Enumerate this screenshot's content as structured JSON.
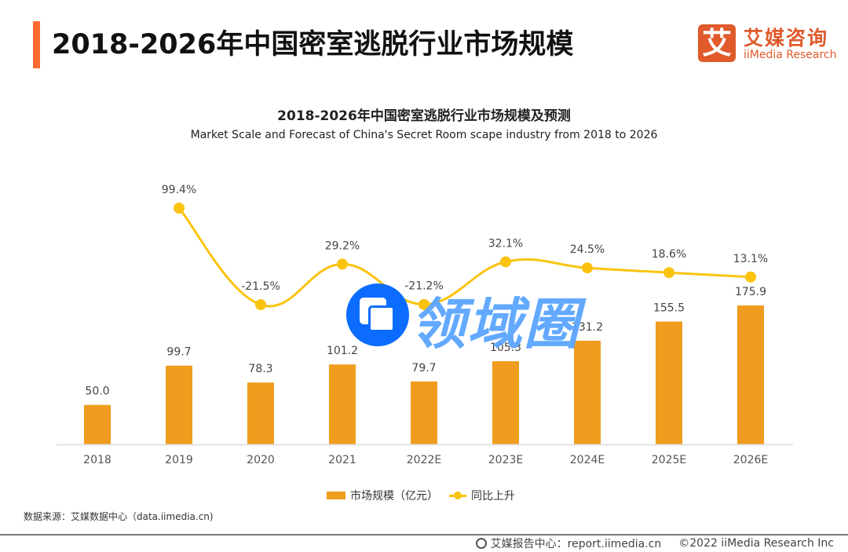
{
  "header": {
    "page_title": "2018-2026年中国密室逃脱行业市场规模",
    "logo_mark": "艾",
    "logo_cn": "艾媒咨询",
    "logo_en": "iiMedia Research",
    "accent_color": "#ff6a33",
    "brand_color": "#e05a2b"
  },
  "chart_data": {
    "type": "bar",
    "title": "2018-2026年中国密室逃脱行业市场规模及预测",
    "subtitle": "Market Scale and Forecast of China's Secret Room scape  industry from 2018 to 2026",
    "categories": [
      "2018",
      "2019",
      "2020",
      "2021",
      "2022E",
      "2023E",
      "2024E",
      "2025E",
      "2026E"
    ],
    "series": [
      {
        "name": "市场规模（亿元）",
        "type": "bar",
        "color": "#f09c1e",
        "values": [
          50.0,
          99.7,
          78.3,
          101.2,
          79.7,
          105.3,
          131.2,
          155.5,
          175.9
        ],
        "labels": [
          "50.0",
          "99.7",
          "78.3",
          "101.2",
          "79.7",
          "105.3",
          "131.2",
          "155.5",
          "175.9"
        ]
      },
      {
        "name": "同比上升",
        "type": "line",
        "color": "#fac30f",
        "values": [
          null,
          99.4,
          -21.5,
          29.2,
          -21.2,
          32.1,
          24.5,
          18.6,
          13.1
        ],
        "labels": [
          null,
          "99.4%",
          "-21.5%",
          "29.2%",
          "-21.2%",
          "32.1%",
          "24.5%",
          "18.6%",
          "13.1%"
        ]
      }
    ],
    "xlabel": "",
    "ylabel": "",
    "grid": false,
    "legend": "bottom-center"
  },
  "legend": {
    "bar_label": "市场规模（亿元）",
    "line_label": "同比上升"
  },
  "watermark": {
    "text": "领域圈"
  },
  "source": "数据来源：艾媒数据中心（data.iimedia.cn)",
  "footer": {
    "report_center": "艾媒报告中心：report.iimedia.cn",
    "copyright": "©2022  iiMedia Research  Inc"
  }
}
